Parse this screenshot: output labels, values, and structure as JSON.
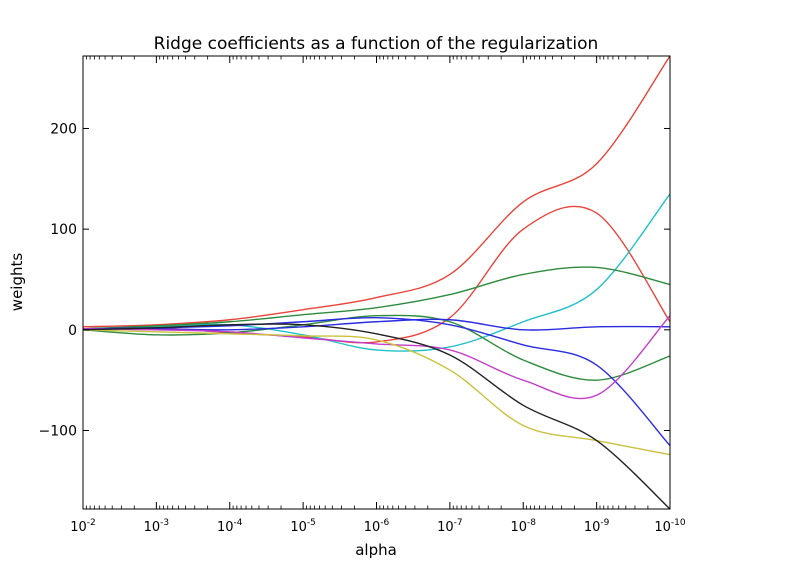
{
  "chart_data": {
    "type": "line",
    "title": "Ridge coefficients as a function of the regularization",
    "xlabel": "alpha",
    "ylabel": "weights",
    "x_scale": "log",
    "x_reversed": true,
    "x_lim": [
      0.01,
      1e-10
    ],
    "ylim": [
      -178,
      272
    ],
    "grid": false,
    "x_ticks": [
      {
        "mantissa": "10",
        "exp": "-2",
        "value": 0.01
      },
      {
        "mantissa": "10",
        "exp": "-3",
        "value": 0.001
      },
      {
        "mantissa": "10",
        "exp": "-4",
        "value": 0.0001
      },
      {
        "mantissa": "10",
        "exp": "-5",
        "value": 1e-05
      },
      {
        "mantissa": "10",
        "exp": "-6",
        "value": 1e-06
      },
      {
        "mantissa": "10",
        "exp": "-7",
        "value": 1e-07
      },
      {
        "mantissa": "10",
        "exp": "-8",
        "value": 1e-08
      },
      {
        "mantissa": "10",
        "exp": "-9",
        "value": 1e-09
      },
      {
        "mantissa": "10",
        "exp": "-10",
        "value": 1e-10
      }
    ],
    "y_ticks": [
      {
        "label": "200",
        "value": 200
      },
      {
        "label": "100",
        "value": 100
      },
      {
        "label": "0",
        "value": 0
      },
      {
        "label": "−100",
        "value": -100
      }
    ],
    "x": [
      0.01,
      0.001,
      0.0001,
      1e-05,
      1e-06,
      1e-07,
      1e-08,
      1e-09,
      1e-10
    ],
    "series": [
      {
        "color": "#e8443a",
        "values": [
          3,
          5,
          10,
          20,
          32,
          55,
          127,
          165,
          272
        ]
      },
      {
        "color": "#e8443a",
        "values": [
          1,
          2,
          -3,
          -7,
          -12,
          12,
          100,
          116,
          8
        ]
      },
      {
        "color": "#22c0c8",
        "values": [
          1,
          3,
          5,
          -5,
          -20,
          -17,
          8,
          40,
          135
        ]
      },
      {
        "color": "#2e8b3e",
        "values": [
          1,
          4,
          8,
          15,
          22,
          35,
          55,
          62,
          45
        ]
      },
      {
        "color": "#2e8b3e",
        "values": [
          0,
          -5,
          -3,
          5,
          14,
          8,
          -30,
          -50,
          -26
        ]
      },
      {
        "color": "#2b2be0",
        "values": [
          1,
          1,
          0,
          3,
          8,
          10,
          0,
          3,
          3
        ]
      },
      {
        "color": "#2b2be0",
        "values": [
          1,
          2,
          4,
          8,
          12,
          5,
          -15,
          -35,
          -115
        ]
      },
      {
        "color": "#c43ec8",
        "values": [
          1,
          0,
          -2,
          -8,
          -14,
          -20,
          -50,
          -65,
          14
        ]
      },
      {
        "color": "#c8c23e",
        "values": [
          0,
          -2,
          -4,
          -6,
          -10,
          -40,
          -95,
          -110,
          -124
        ]
      },
      {
        "color": "#222222",
        "values": [
          0,
          2,
          5,
          5,
          -4,
          -25,
          -75,
          -110,
          -178
        ]
      }
    ]
  }
}
